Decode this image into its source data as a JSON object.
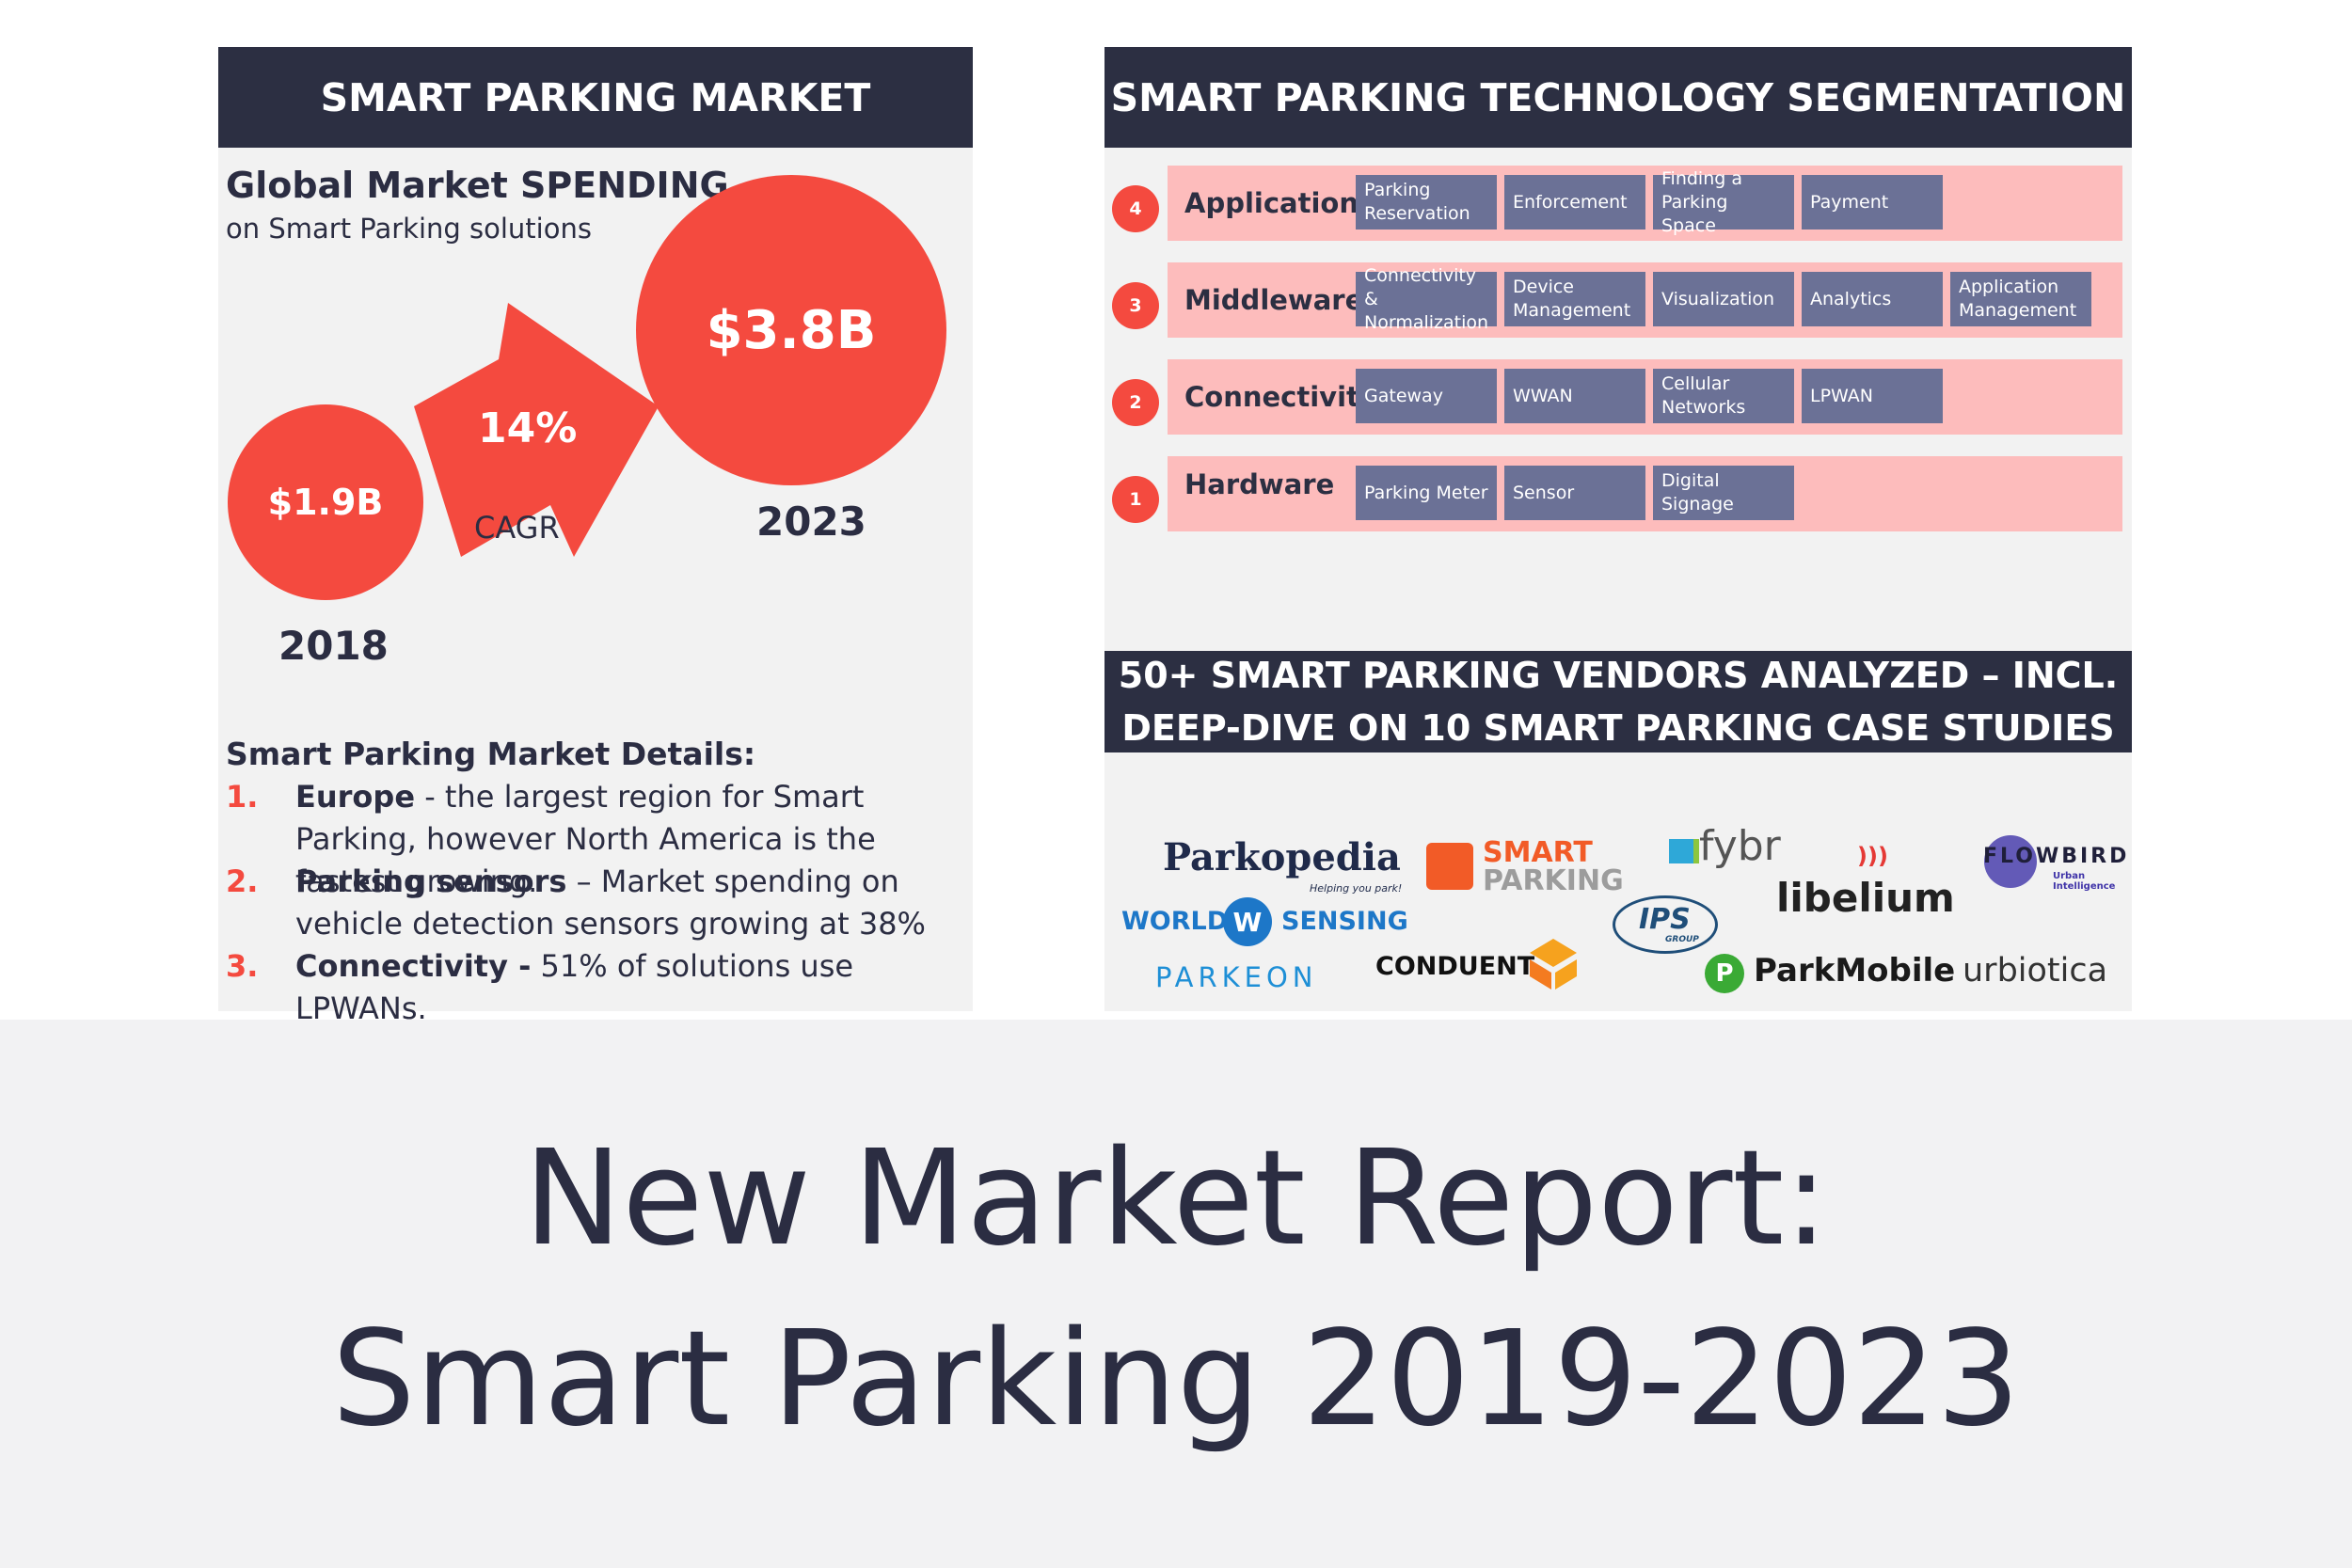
{
  "left_panel": {
    "header": "SMART PARKING MARKET",
    "title": "Global Market SPENDING",
    "subtitle": "on Smart Parking solutions",
    "value_2018": "$1.9B",
    "year_2018": "2018",
    "value_2023": "$3.8B",
    "year_2023": "2023",
    "cagr_value": "14%",
    "cagr_label": "CAGR",
    "details_title": "Smart Parking Market Details:",
    "details": [
      {
        "num": "1.",
        "bold": "Europe",
        "text": " - the largest region for Smart Parking, however North America is the fastest growing."
      },
      {
        "num": "2.",
        "bold": "Parking sensors",
        "text": " – Market spending on vehicle detection sensors growing at 38%"
      },
      {
        "num": "3.",
        "bold": "Connectivity -",
        "text": " 51% of solutions use LPWANs."
      }
    ]
  },
  "right_panel": {
    "header": "SMART PARKING TECHNOLOGY SEGMENTATION",
    "layers": [
      {
        "badge": "4",
        "name": "Applications",
        "items": [
          "Parking Reservation",
          "Enforcement",
          "Finding a Parking Space",
          "Payment"
        ]
      },
      {
        "badge": "3",
        "name": "Middleware",
        "items": [
          "Connectivity & Normalization",
          "Device Management",
          "Visualization",
          "Analytics",
          "Application Management"
        ]
      },
      {
        "badge": "2",
        "name": "Connectivity",
        "items": [
          "Gateway",
          "WWAN",
          "Cellular Networks",
          "LPWAN"
        ]
      },
      {
        "badge": "1",
        "name": "Hardware",
        "items": [
          "Parking Meter",
          "Sensor",
          "Digital Signage"
        ]
      }
    ],
    "vendors_header_line1": "50+ SMART PARKING VENDORS ANALYZED – INCL.",
    "vendors_header_line2": "DEEP-DIVE ON 10 SMART PARKING CASE STUDIES",
    "vendors": {
      "parkopedia": "Parkopedia",
      "parkopedia_tagline": "Helping you park!",
      "smart_parking_1": "SMART",
      "smart_parking_2": "PARKING",
      "fybr": "fybr",
      "libelium": "libelium",
      "flowbird": "FLOWBIRD",
      "flowbird_sub1": "Urban",
      "flowbird_sub2": "Intelligence",
      "world_sensing_1": "WORLD",
      "world_sensing_mark": "W",
      "world_sensing_2": "SENSING",
      "ips": "IPS",
      "ips_sub": "GROUP",
      "parkeon": "PARKEON",
      "conduent": "CONDUENT",
      "parkmobile": "ParkMobile",
      "urbiotica": "urbiotica"
    }
  },
  "report": {
    "line1": "New Market Report:",
    "line2": "Smart Parking 2019-2023"
  }
}
